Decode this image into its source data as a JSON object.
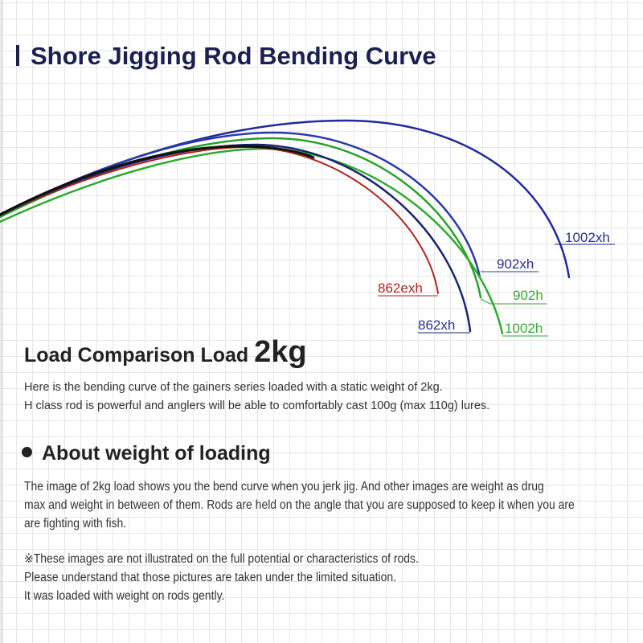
{
  "title": "Shore Jigging Rod Bending Curve",
  "diagram": {
    "curves": [
      {
        "label": "1002xh",
        "color": "#1f2a9c"
      },
      {
        "label": "902xh",
        "color": "#2a3aa8"
      },
      {
        "label": "902h",
        "color": "#2aa02a"
      },
      {
        "label": "1002h",
        "color": "#30aa30"
      },
      {
        "label": "862xh",
        "color": "#1a2470"
      },
      {
        "label": "862exh",
        "color": "#b02222"
      }
    ]
  },
  "load": {
    "heading": "Load Comparison Load",
    "value": "2kg",
    "lines": [
      "Here is the bending curve of the gainers series loaded with a static weight of 2kg.",
      "H class rod is powerful and anglers will be able to comfortably cast 100g (max 110g) lures."
    ]
  },
  "about": {
    "heading": "About weight of loading",
    "lines": [
      "The image of 2kg load shows you the bend curve when you jerk jig. And other images are weight as drug",
      "max and weight in between of them. Rods are held on the angle that you are supposed to keep it when you are",
      "are fighting with fish."
    ],
    "notes": [
      "※These images are not illustrated on the full potential or characteristics of rods.",
      "Please understand that those pictures are taken under the limited situation.",
      "It was loaded with weight on rods gently."
    ]
  }
}
